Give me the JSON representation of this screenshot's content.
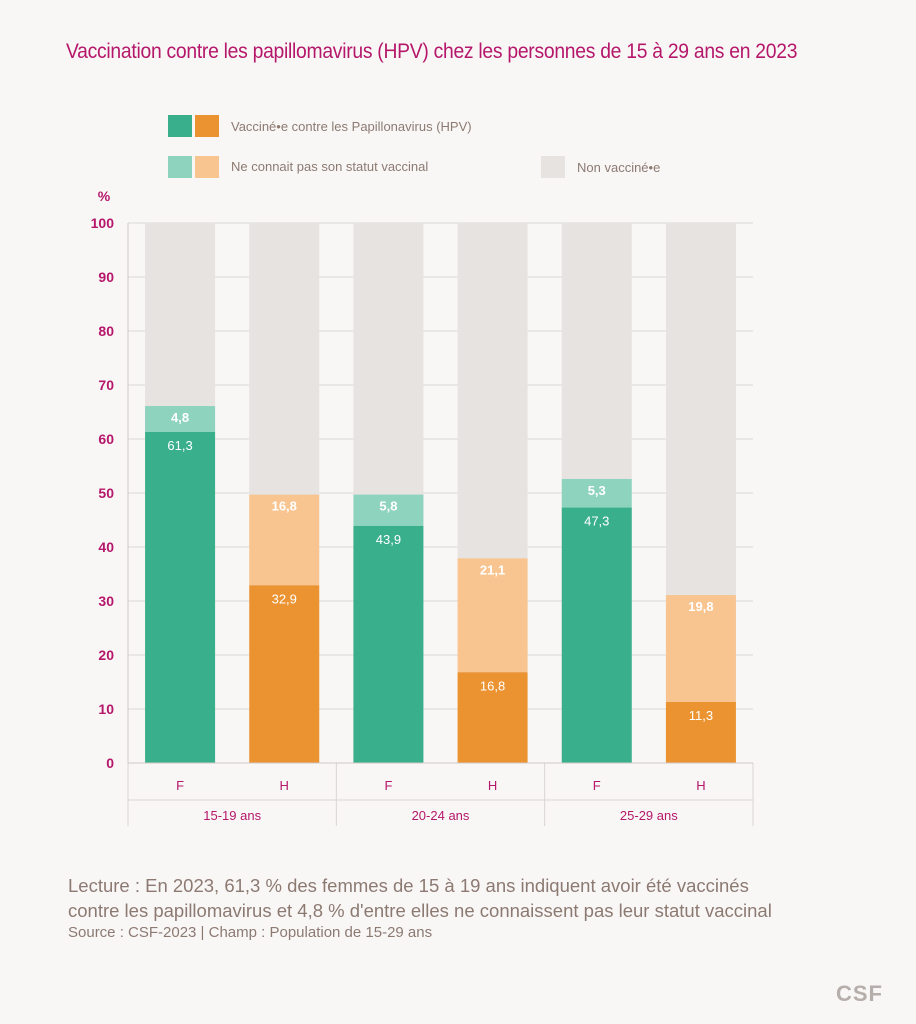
{
  "title": "Vaccination contre les papillomavirus (HPV) chez les personnes de 15 à 29 ans en 2023",
  "legend": {
    "vaccinated": "Vacciné•e contre les Papillonavirus (HPV)",
    "unknown": "Ne connait pas son statut vaccinal",
    "not_vaccinated": "Non vacciné•e"
  },
  "colors": {
    "female_vaccinated": "#3aaf8c",
    "female_unknown": "#8ed3be",
    "male_vaccinated": "#eb9330",
    "male_unknown": "#f8c590",
    "not_vaccinated": "#e6e3e1",
    "accent": "#b5176a"
  },
  "chart_data": {
    "type": "bar",
    "stacked": true,
    "ylabel": "%",
    "ylim": [
      0,
      100
    ],
    "yticks": [
      0,
      10,
      20,
      30,
      40,
      50,
      60,
      70,
      80,
      90,
      100
    ],
    "grid": true,
    "legend_position": "top",
    "groups": [
      {
        "label": "15-19 ans",
        "bars": [
          {
            "sex": "F",
            "vaccinated": 61.3,
            "vaccinated_label": "61,3",
            "unknown": 4.8,
            "unknown_label": "4,8"
          },
          {
            "sex": "H",
            "vaccinated": 32.9,
            "vaccinated_label": "32,9",
            "unknown": 16.8,
            "unknown_label": "16,8"
          }
        ]
      },
      {
        "label": "20-24 ans",
        "bars": [
          {
            "sex": "F",
            "vaccinated": 43.9,
            "vaccinated_label": "43,9",
            "unknown": 5.8,
            "unknown_label": "5,8"
          },
          {
            "sex": "H",
            "vaccinated": 16.8,
            "vaccinated_label": "16,8",
            "unknown": 21.1,
            "unknown_label": "21,1"
          }
        ]
      },
      {
        "label": "25-29 ans",
        "bars": [
          {
            "sex": "F",
            "vaccinated": 47.3,
            "vaccinated_label": "47,3",
            "unknown": 5.3,
            "unknown_label": "5,3"
          },
          {
            "sex": "H",
            "vaccinated": 11.3,
            "vaccinated_label": "11,3",
            "unknown": 19.8,
            "unknown_label": "19,8"
          }
        ]
      }
    ]
  },
  "footer": {
    "reading_line1": "Lecture : En 2023, 61,3 % des femmes de 15 à 19 ans indiquent avoir été vaccinés",
    "reading_line2": "contre les papillomavirus et 4,8 % d'entre elles ne connaissent pas leur statut vaccinal",
    "source": "Source : CSF-2023 | Champ : Population de 15-29 ans"
  },
  "logo": "CSF"
}
